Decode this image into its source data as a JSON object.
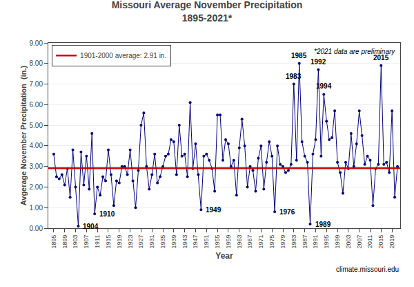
{
  "chart_data": {
    "type": "line",
    "title": "Missouri Average November Precipitation",
    "subtitle": "1895-2021*",
    "x_label": "Year",
    "y_label": "Avgerage November Precipitation  (in.)",
    "x": [
      1895,
      1896,
      1897,
      1898,
      1899,
      1900,
      1901,
      1902,
      1903,
      1904,
      1905,
      1906,
      1907,
      1908,
      1909,
      1910,
      1911,
      1912,
      1913,
      1914,
      1915,
      1916,
      1917,
      1918,
      1919,
      1920,
      1921,
      1922,
      1923,
      1924,
      1925,
      1926,
      1927,
      1928,
      1929,
      1930,
      1931,
      1932,
      1933,
      1934,
      1935,
      1936,
      1937,
      1938,
      1939,
      1940,
      1941,
      1942,
      1943,
      1944,
      1945,
      1946,
      1947,
      1948,
      1949,
      1950,
      1951,
      1952,
      1953,
      1954,
      1955,
      1956,
      1957,
      1958,
      1959,
      1960,
      1961,
      1962,
      1963,
      1964,
      1965,
      1966,
      1967,
      1968,
      1969,
      1970,
      1971,
      1972,
      1973,
      1974,
      1975,
      1976,
      1977,
      1978,
      1979,
      1980,
      1981,
      1982,
      1983,
      1984,
      1985,
      1986,
      1987,
      1988,
      1989,
      1990,
      1991,
      1992,
      1993,
      1994,
      1995,
      1996,
      1997,
      1998,
      1999,
      2000,
      2001,
      2002,
      2003,
      2004,
      2005,
      2006,
      2007,
      2008,
      2009,
      2010,
      2011,
      2012,
      2013,
      2014,
      2015,
      2016,
      2017,
      2018,
      2019,
      2020,
      2021
    ],
    "series": [
      {
        "color": "#000080",
        "marker": "circle",
        "line_style": "solid",
        "values": [
          3.6,
          2.5,
          2.4,
          2.6,
          2.1,
          2.9,
          1.5,
          3.8,
          2.0,
          0.1,
          3.7,
          2.1,
          3.5,
          1.9,
          4.6,
          0.7,
          2.0,
          1.6,
          2.5,
          2.3,
          3.8,
          2.6,
          1.1,
          2.3,
          2.2,
          3.0,
          3.0,
          2.6,
          3.8,
          2.3,
          1.0,
          2.8,
          5.0,
          5.6,
          3.0,
          1.9,
          2.6,
          3.6,
          2.2,
          2.5,
          3.0,
          3.5,
          3.6,
          4.3,
          4.2,
          2.6,
          5.0,
          3.5,
          3.6,
          2.5,
          6.1,
          2.9,
          4.1,
          2.6,
          0.9,
          3.5,
          3.6,
          3.3,
          2.9,
          1.8,
          5.5,
          5.5,
          3.3,
          4.3,
          4.1,
          3.0,
          3.3,
          1.6,
          3.9,
          5.3,
          4.0,
          2.0,
          3.0,
          2.8,
          1.8,
          3.4,
          4.0,
          1.9,
          3.2,
          4.2,
          3.5,
          0.8,
          4.0,
          3.1,
          3.0,
          2.7,
          2.8,
          3.1,
          7.0,
          3.3,
          8.0,
          4.2,
          3.5,
          3.2,
          0.2,
          3.6,
          4.3,
          7.7,
          3.5,
          6.5,
          5.2,
          4.3,
          4.4,
          5.7,
          3.2,
          2.7,
          1.7,
          3.2,
          2.9,
          4.6,
          3.0,
          4.1,
          5.7,
          4.5,
          3.1,
          3.5,
          3.3,
          1.1,
          2.9,
          3.1,
          7.9,
          3.1,
          3.2,
          2.7,
          5.7,
          1.5,
          3.0
        ]
      }
    ],
    "average": {
      "name": "1901-2000 average: 2.91 in.",
      "value": 2.91,
      "color": "#CC0000"
    },
    "xlim": [
      1893,
      2022
    ],
    "xticks": [
      1895,
      1899,
      1903,
      1907,
      1911,
      1915,
      1919,
      1923,
      1927,
      1931,
      1935,
      1939,
      1943,
      1947,
      1951,
      1955,
      1959,
      1963,
      1967,
      1971,
      1975,
      1979,
      1983,
      1987,
      1991,
      1995,
      1999,
      2003,
      2007,
      2011,
      2015,
      2019
    ],
    "ylim": [
      0.0,
      9.0
    ],
    "yticks": [
      {
        "value": 0,
        "label": "0.00"
      },
      {
        "value": 1,
        "label": "1.00"
      },
      {
        "value": 2,
        "label": "2.00"
      },
      {
        "value": 3,
        "label": "3.00"
      },
      {
        "value": 4,
        "label": "4.00"
      },
      {
        "value": 5,
        "label": "5.00"
      },
      {
        "value": 6,
        "label": "6.00"
      },
      {
        "value": 7,
        "label": "7.00"
      },
      {
        "value": 8,
        "label": "8.00"
      },
      {
        "value": 9,
        "label": "9.00"
      }
    ],
    "grid": "y",
    "legend": "upper left",
    "annotations": [
      {
        "text": "1904",
        "x": 1904,
        "y": 0.1
      },
      {
        "text": "1910",
        "x": 1910,
        "y": 0.7
      },
      {
        "text": "1949",
        "x": 1949,
        "y": 0.9
      },
      {
        "text": "1976",
        "x": 1976,
        "y": 0.8
      },
      {
        "text": "1983",
        "x": 1983,
        "y": 7.0
      },
      {
        "text": "1985",
        "x": 1985,
        "y": 8.0
      },
      {
        "text": "1989",
        "x": 1989,
        "y": 0.2
      },
      {
        "text": "1992",
        "x": 1992,
        "y": 7.7
      },
      {
        "text": "1994",
        "x": 1994,
        "y": 6.5
      },
      {
        "text": "2015",
        "x": 2015,
        "y": 7.9
      }
    ],
    "note": "*2021 data are preliminary",
    "source": "climate.missouri.edu"
  }
}
